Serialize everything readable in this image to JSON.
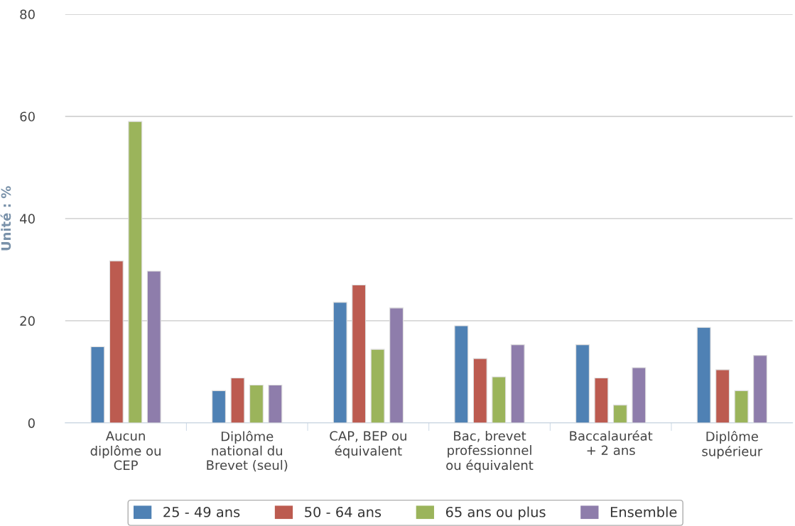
{
  "chart_data": {
    "type": "bar",
    "ylabel": "Unité : %",
    "categories": [
      "Aucun\ndiplôme ou\nCEP",
      "Diplôme\nnational du\nBrevet (seul)",
      "CAP, BEP ou\néquivalent",
      "Bac, brevet\nprofessionnel\nou équivalent",
      "Baccalauréat\n+ 2 ans",
      "Diplôme\nsupérieur"
    ],
    "series": [
      {
        "name": "25 - 49 ans",
        "color": "#4f81b4",
        "values": [
          14.9,
          6.3,
          23.6,
          19.0,
          15.3,
          18.7
        ]
      },
      {
        "name": "50 - 64 ans",
        "color": "#bc5b50",
        "values": [
          31.7,
          8.8,
          27.0,
          12.6,
          8.8,
          10.4
        ]
      },
      {
        "name": "65 ans ou plus",
        "color": "#9bb45b",
        "values": [
          59.0,
          7.4,
          14.4,
          9.0,
          3.5,
          6.3
        ]
      },
      {
        "name": "Ensemble",
        "color": "#8e7dab",
        "values": [
          29.7,
          7.4,
          22.5,
          15.3,
          10.8,
          13.2
        ]
      }
    ],
    "ylim": [
      0,
      80
    ],
    "yticks": [
      0,
      20,
      40,
      60,
      80
    ],
    "grid": "y",
    "legend": "bottom"
  }
}
